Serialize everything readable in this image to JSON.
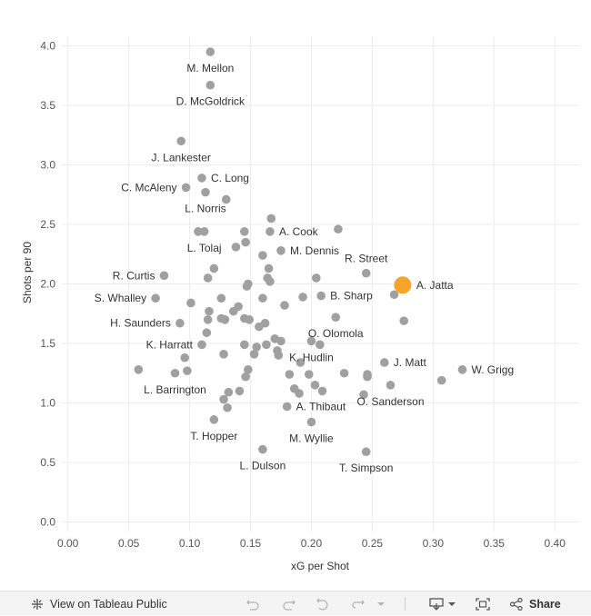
{
  "chart_data": {
    "type": "scatter",
    "xlabel": "xG per Shot",
    "ylabel": "Shots per 90",
    "xlim": [
      -0.005,
      0.42
    ],
    "ylim": [
      -0.08,
      4.08
    ],
    "xticks": [
      0.0,
      0.05,
      0.1,
      0.15,
      0.2,
      0.25,
      0.3,
      0.35,
      0.4
    ],
    "xtick_labels": [
      "0.00",
      "0.05",
      "0.10",
      "0.15",
      "0.20",
      "0.25",
      "0.30",
      "0.35",
      "0.40"
    ],
    "yticks": [
      0.0,
      0.5,
      1.0,
      1.5,
      2.0,
      2.5,
      3.0,
      3.5,
      4.0
    ],
    "ytick_labels": [
      "0.0",
      "0.5",
      "1.0",
      "1.5",
      "2.0",
      "2.5",
      "3.0",
      "3.5",
      "4.0"
    ],
    "colors": {
      "default": "#a0a0a0",
      "highlight": "#f7a42a",
      "grid": "#ececec"
    },
    "labeled_points": [
      {
        "name": "M. Mellon",
        "x": 0.117,
        "y": 3.95,
        "anchor": "below"
      },
      {
        "name": "D. McGoldrick",
        "x": 0.117,
        "y": 3.67,
        "anchor": "below"
      },
      {
        "name": "J. Lankester",
        "x": 0.093,
        "y": 3.2,
        "anchor": "below"
      },
      {
        "name": "C. Long",
        "x": 0.11,
        "y": 2.89,
        "anchor": "right"
      },
      {
        "name": "C. McAleny",
        "x": 0.097,
        "y": 2.81,
        "anchor": "left"
      },
      {
        "name": "L. Norris",
        "x": 0.113,
        "y": 2.77,
        "anchor": "below"
      },
      {
        "name": "A. Cook",
        "x": 0.166,
        "y": 2.44,
        "anchor": "right"
      },
      {
        "name": "L. Tolaj",
        "x": 0.112,
        "y": 2.44,
        "anchor": "below"
      },
      {
        "name": "M. Dennis",
        "x": 0.175,
        "y": 2.28,
        "anchor": "right"
      },
      {
        "name": "R. Street",
        "x": 0.245,
        "y": 2.09,
        "anchor": "above"
      },
      {
        "name": "R. Curtis",
        "x": 0.079,
        "y": 2.07,
        "anchor": "left"
      },
      {
        "name": "A. Jatta",
        "x": 0.275,
        "y": 1.99,
        "anchor": "right",
        "highlight": true
      },
      {
        "name": "S. Whalley",
        "x": 0.072,
        "y": 1.88,
        "anchor": "left"
      },
      {
        "name": "B. Sharp",
        "x": 0.208,
        "y": 1.9,
        "anchor": "right"
      },
      {
        "name": "H. Saunders",
        "x": 0.092,
        "y": 1.67,
        "anchor": "left"
      },
      {
        "name": "O. Olomola",
        "x": 0.22,
        "y": 1.72,
        "anchor": "below"
      },
      {
        "name": "K. Harratt",
        "x": 0.11,
        "y": 1.49,
        "anchor": "left"
      },
      {
        "name": "K. Hudlin",
        "x": 0.2,
        "y": 1.52,
        "anchor": "below"
      },
      {
        "name": "J. Matt",
        "x": 0.26,
        "y": 1.34,
        "anchor": "right"
      },
      {
        "name": "W. Grigg",
        "x": 0.324,
        "y": 1.28,
        "anchor": "right"
      },
      {
        "name": "L. Barrington",
        "x": 0.088,
        "y": 1.25,
        "anchor": "below"
      },
      {
        "name": "O. Sanderson",
        "x": 0.265,
        "y": 1.15,
        "anchor": "below"
      },
      {
        "name": "A. Thibaut",
        "x": 0.18,
        "y": 0.97,
        "anchor": "right"
      },
      {
        "name": "T. Hopper",
        "x": 0.12,
        "y": 0.86,
        "anchor": "below"
      },
      {
        "name": "M. Wyllie",
        "x": 0.2,
        "y": 0.84,
        "anchor": "below"
      },
      {
        "name": "L. Dulson",
        "x": 0.16,
        "y": 0.61,
        "anchor": "below"
      },
      {
        "name": "T. Simpson",
        "x": 0.245,
        "y": 0.59,
        "anchor": "below"
      }
    ],
    "points": [
      [
        0.058,
        1.28
      ],
      [
        0.096,
        1.38
      ],
      [
        0.098,
        1.27
      ],
      [
        0.101,
        1.84
      ],
      [
        0.107,
        2.44
      ],
      [
        0.114,
        1.59
      ],
      [
        0.115,
        1.7
      ],
      [
        0.115,
        2.05
      ],
      [
        0.116,
        1.77
      ],
      [
        0.12,
        2.13
      ],
      [
        0.126,
        1.88
      ],
      [
        0.126,
        1.71
      ],
      [
        0.128,
        1.41
      ],
      [
        0.129,
        1.7
      ],
      [
        0.128,
        1.03
      ],
      [
        0.13,
        2.71
      ],
      [
        0.131,
        0.96
      ],
      [
        0.132,
        1.09
      ],
      [
        0.136,
        1.77
      ],
      [
        0.138,
        2.31
      ],
      [
        0.14,
        1.81
      ],
      [
        0.141,
        1.1
      ],
      [
        0.145,
        1.71
      ],
      [
        0.145,
        1.49
      ],
      [
        0.145,
        2.44
      ],
      [
        0.146,
        2.35
      ],
      [
        0.147,
        1.98
      ],
      [
        0.148,
        2.0
      ],
      [
        0.146,
        1.22
      ],
      [
        0.148,
        1.28
      ],
      [
        0.149,
        1.7
      ],
      [
        0.153,
        1.41
      ],
      [
        0.155,
        1.47
      ],
      [
        0.157,
        1.64
      ],
      [
        0.16,
        2.24
      ],
      [
        0.16,
        1.88
      ],
      [
        0.162,
        1.67
      ],
      [
        0.163,
        1.49
      ],
      [
        0.164,
        2.05
      ],
      [
        0.165,
        2.13
      ],
      [
        0.166,
        2.02
      ],
      [
        0.167,
        2.55
      ],
      [
        0.17,
        1.54
      ],
      [
        0.172,
        1.44
      ],
      [
        0.173,
        1.4
      ],
      [
        0.175,
        1.52
      ],
      [
        0.178,
        1.82
      ],
      [
        0.182,
        1.24
      ],
      [
        0.186,
        1.12
      ],
      [
        0.19,
        1.08
      ],
      [
        0.191,
        1.34
      ],
      [
        0.193,
        1.89
      ],
      [
        0.198,
        1.24
      ],
      [
        0.203,
        1.15
      ],
      [
        0.204,
        2.05
      ],
      [
        0.207,
        1.49
      ],
      [
        0.209,
        1.1
      ],
      [
        0.222,
        2.46
      ],
      [
        0.227,
        1.25
      ],
      [
        0.243,
        1.07
      ],
      [
        0.246,
        1.22
      ],
      [
        0.246,
        1.24
      ],
      [
        0.268,
        1.91
      ],
      [
        0.276,
        1.69
      ],
      [
        0.307,
        1.19
      ]
    ]
  },
  "toolbar": {
    "view_label": "View on Tableau Public",
    "share_label": "Share"
  }
}
